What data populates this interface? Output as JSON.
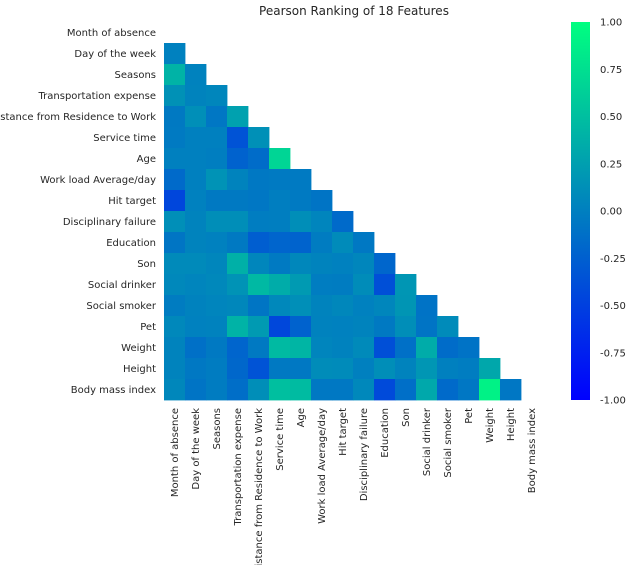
{
  "chart_data": {
    "type": "heatmap",
    "title": "Pearson Ranking of 18 Features",
    "features": [
      "Month of absence",
      "Day of the week",
      "Seasons",
      "Transportation expense",
      "Distance from Residence to Work",
      "Service time",
      "Age",
      "Work load Average/day ",
      "Hit target",
      "Disciplinary failure",
      "Education",
      "Son",
      "Social drinker",
      "Social smoker",
      "Pet",
      "Weight",
      "Height",
      "Body mass index"
    ],
    "mask": "lower-triangle",
    "colormap": "winter",
    "vmin": -1.0,
    "vmax": 1.0,
    "colorbar_ticks": [
      "1.00",
      "0.75",
      "0.50",
      "0.25",
      "0.00",
      "-0.25",
      "-0.50",
      "-0.75",
      "-1.00"
    ],
    "values": [
      [],
      [
        0.01
      ],
      [
        0.4,
        0.02
      ],
      [
        0.14,
        0.03,
        0.05
      ],
      [
        -0.05,
        0.12,
        -0.07,
        0.26
      ],
      [
        -0.04,
        0.0,
        0.0,
        -0.35,
        0.13
      ],
      [
        0.0,
        0.0,
        -0.01,
        -0.23,
        -0.15,
        0.67
      ],
      [
        -0.17,
        0.0,
        0.15,
        0.03,
        -0.06,
        -0.04,
        -0.04
      ],
      [
        -0.45,
        0.01,
        -0.05,
        -0.05,
        -0.07,
        -0.01,
        -0.04,
        -0.09
      ],
      [
        0.12,
        0.03,
        0.11,
        0.11,
        -0.02,
        -0.01,
        0.11,
        0.04,
        -0.17
      ],
      [
        -0.08,
        0.03,
        0.01,
        -0.05,
        -0.26,
        -0.21,
        -0.22,
        -0.03,
        0.09,
        -0.06
      ],
      [
        0.08,
        0.08,
        0.05,
        0.38,
        0.05,
        -0.04,
        0.06,
        0.03,
        0.01,
        0.05,
        -0.2
      ],
      [
        0.07,
        0.04,
        0.07,
        0.15,
        0.45,
        0.35,
        0.21,
        -0.02,
        -0.03,
        0.1,
        -0.38,
        0.18
      ],
      [
        -0.03,
        0.02,
        0.04,
        0.06,
        -0.08,
        0.07,
        0.12,
        0.03,
        0.06,
        0.01,
        0.05,
        0.17,
        -0.1
      ],
      [
        0.07,
        0.01,
        0.02,
        0.4,
        0.21,
        -0.44,
        -0.23,
        0.02,
        0.01,
        0.03,
        -0.05,
        0.11,
        -0.09,
        0.09
      ],
      [
        0.03,
        -0.12,
        -0.05,
        -0.21,
        -0.05,
        0.46,
        0.42,
        0.04,
        0.02,
        0.08,
        -0.38,
        -0.12,
        0.35,
        -0.15,
        -0.1
      ],
      [
        0.03,
        -0.06,
        -0.03,
        -0.19,
        -0.35,
        -0.05,
        -0.06,
        0.1,
        0.09,
        0.0,
        0.11,
        0.03,
        0.18,
        0.0,
        -0.02,
        0.31
      ],
      [
        0.06,
        -0.09,
        -0.03,
        -0.14,
        0.11,
        0.5,
        0.47,
        -0.06,
        -0.06,
        0.07,
        -0.42,
        -0.13,
        0.32,
        -0.17,
        -0.07,
        0.9,
        -0.07
      ]
    ]
  }
}
